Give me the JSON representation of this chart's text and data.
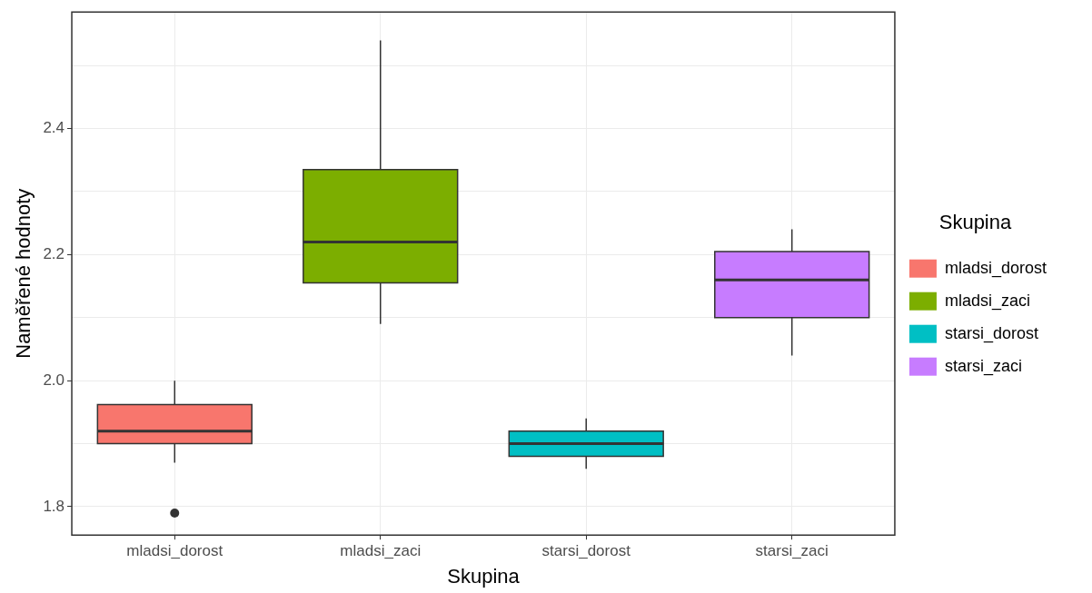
{
  "chart_data": {
    "type": "box",
    "xlabel": "Skupina",
    "ylabel": "Naměřené hodnoty",
    "legend_title": "Skupina",
    "legend": "right",
    "grid": true,
    "categories": [
      "mladsi_dorost",
      "mladsi_zaci",
      "starsi_dorost",
      "starsi_zaci"
    ],
    "series": [
      {
        "name": "mladsi_dorost",
        "color": "#f8766d",
        "boxes": [
          {
            "low": 1.87,
            "q1": 1.9,
            "median": 1.92,
            "q3": 1.962,
            "high": 2.0,
            "outliers": [
              1.79
            ]
          },
          null,
          null,
          null
        ]
      },
      {
        "name": "mladsi_zaci",
        "color": "#7cae00",
        "boxes": [
          null,
          {
            "low": 2.09,
            "q1": 2.155,
            "median": 2.22,
            "q3": 2.335,
            "high": 2.54
          },
          null,
          null
        ]
      },
      {
        "name": "starsi_dorost",
        "color": "#00bfc4",
        "boxes": [
          null,
          null,
          {
            "low": 1.86,
            "q1": 1.88,
            "median": 1.9,
            "q3": 1.92,
            "high": 1.94
          },
          null
        ]
      },
      {
        "name": "starsi_zaci",
        "color": "#c77cff",
        "boxes": [
          null,
          null,
          null,
          {
            "low": 2.04,
            "q1": 2.1,
            "median": 2.16,
            "q3": 2.205,
            "high": 2.24
          }
        ]
      }
    ],
    "ylim": [
      1.755,
      2.585
    ],
    "yticks": [
      1.8,
      {
        "value": 1.9,
        "label": null
      },
      {
        "value": 2.0,
        "label": "2.0"
      },
      {
        "value": 2.1,
        "label": null
      },
      2.2,
      {
        "value": 2.3,
        "label": null
      },
      2.4,
      {
        "value": 2.5,
        "label": null
      }
    ]
  }
}
